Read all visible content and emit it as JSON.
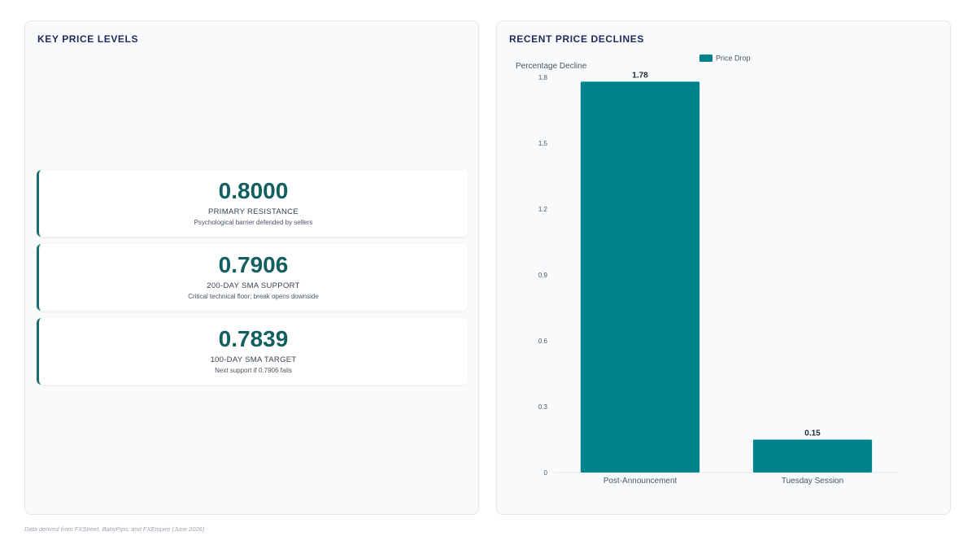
{
  "left_panel": {
    "title": "KEY PRICE LEVELS",
    "levels": [
      {
        "value": "0.8000",
        "label": "PRIMARY RESISTANCE",
        "description": "Psychological barrier defended by sellers"
      },
      {
        "value": "0.7906",
        "label": "200-DAY SMA SUPPORT",
        "description": "Critical technical floor; break opens downside"
      },
      {
        "value": "0.7839",
        "label": "100-DAY SMA TARGET",
        "description": "Next support if 0.7906 fails"
      }
    ]
  },
  "right_panel": {
    "title": "RECENT PRICE DECLINES"
  },
  "chart_data": {
    "type": "bar",
    "title": "RECENT PRICE DECLINES",
    "categories": [
      "Post-Announcement",
      "Tuesday Session"
    ],
    "series": [
      {
        "name": "Price Drop",
        "values": [
          1.78,
          0.15
        ],
        "color": "#00838a"
      }
    ],
    "data_labels": [
      "1.78",
      "0.15"
    ],
    "xlabel": "",
    "ylabel": "Percentage Decline",
    "ylim": [
      0,
      1.8
    ],
    "yticks": [
      0,
      0.3,
      0.6,
      0.9,
      1.2,
      1.5,
      1.8
    ],
    "ytick_labels": [
      "0",
      "0.3",
      "0.6",
      "0.9",
      "1.2",
      "1.5",
      "1.8"
    ],
    "grid": false,
    "legend_position": "top"
  },
  "footnote": "Data derived from FXStreet, BabyPips, and FXEmpire (June 2026)"
}
